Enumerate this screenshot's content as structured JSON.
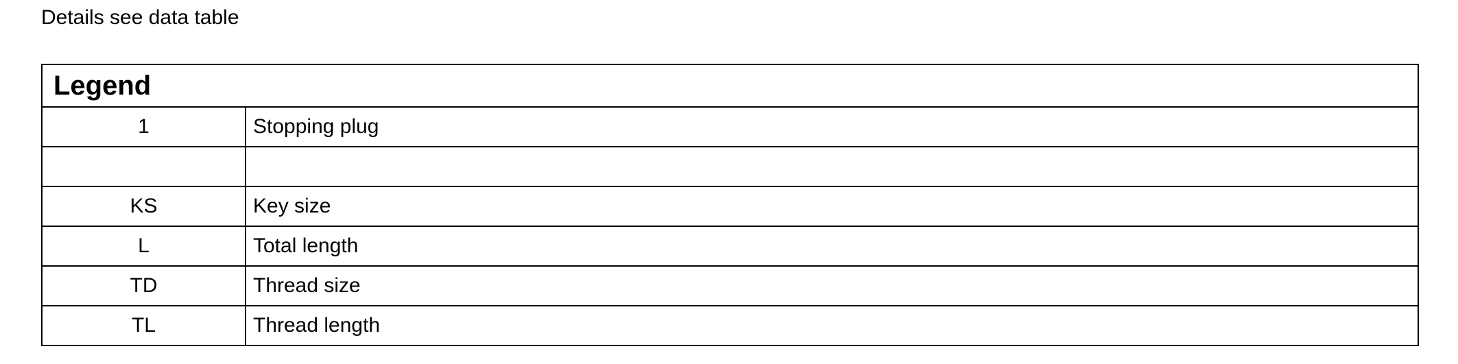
{
  "intro_text": "Details see data table",
  "legend": {
    "title": "Legend",
    "rows": [
      {
        "symbol": "1",
        "description": "Stopping plug"
      },
      {
        "symbol": "",
        "description": ""
      },
      {
        "symbol": "KS",
        "description": "Key size"
      },
      {
        "symbol": "L",
        "description": "Total length"
      },
      {
        "symbol": "TD",
        "description": "Thread size"
      },
      {
        "symbol": "TL",
        "description": "Thread length"
      }
    ]
  }
}
